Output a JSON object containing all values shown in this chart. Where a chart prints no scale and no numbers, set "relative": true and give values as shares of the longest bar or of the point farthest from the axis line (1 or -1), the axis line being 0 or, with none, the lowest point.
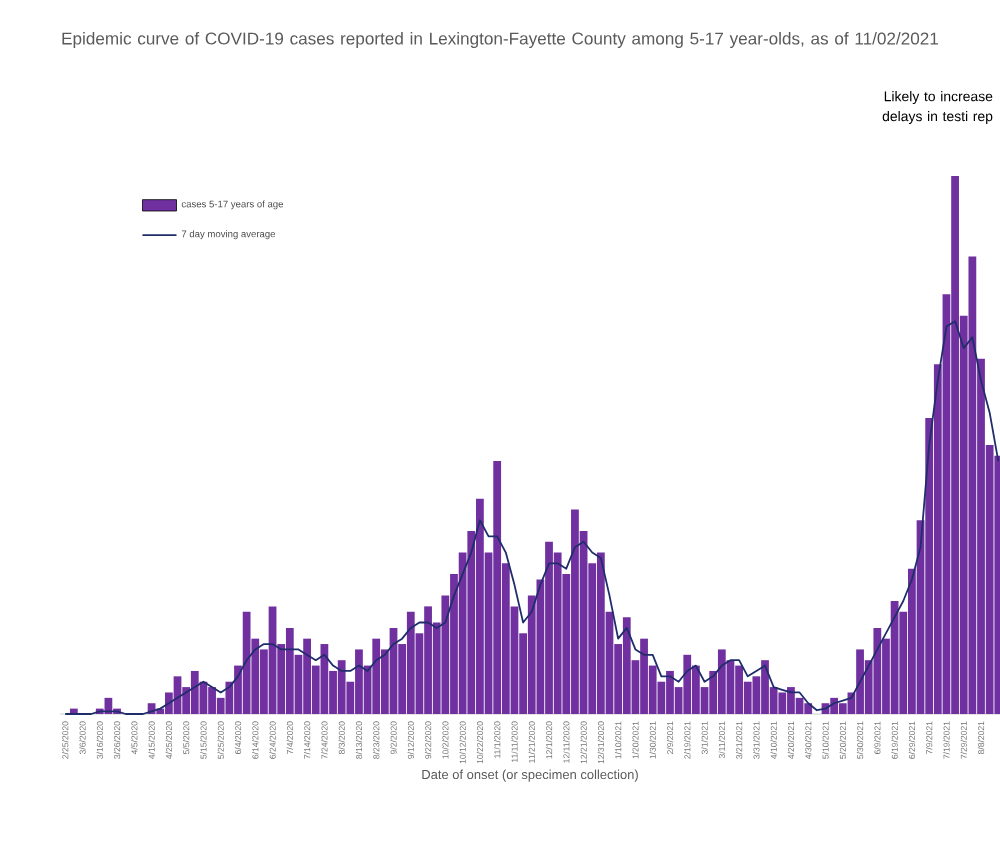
{
  "chart_data": {
    "type": "bar",
    "title": "Epidemic curve of COVID-19 cases reported in Lexington-Fayette County among 5-17 year-olds, as of 11/02/2021",
    "xlabel": "Date of onset (or specimen collection)",
    "annotations": [
      "Likely to increase delays in testi rep"
    ],
    "relative": true,
    "legend": "top left",
    "tick_labels": "x",
    "xlim": [
      "2020-02-22",
      "2021-08-19"
    ],
    "xticks": [
      {
        "value": "2020-02-25",
        "label": "2/25/2020"
      },
      {
        "value": "2020-03-06",
        "label": "3/6/2020"
      },
      {
        "value": "2020-03-16",
        "label": "3/16/2020"
      },
      {
        "value": "2020-03-26",
        "label": "3/26/2020"
      },
      {
        "value": "2020-04-05",
        "label": "4/5/2020"
      },
      {
        "value": "2020-04-15",
        "label": "4/15/2020"
      },
      {
        "value": "2020-04-25",
        "label": "4/25/2020"
      },
      {
        "value": "2020-05-05",
        "label": "5/5/2020"
      },
      {
        "value": "2020-05-15",
        "label": "5/15/2020"
      },
      {
        "value": "2020-05-25",
        "label": "5/25/2020"
      },
      {
        "value": "2020-06-04",
        "label": "6/4/2020"
      },
      {
        "value": "2020-06-14",
        "label": "6/14/2020"
      },
      {
        "value": "2020-06-24",
        "label": "6/24/2020"
      },
      {
        "value": "2020-07-04",
        "label": "7/4/2020"
      },
      {
        "value": "2020-07-14",
        "label": "7/14/2020"
      },
      {
        "value": "2020-07-24",
        "label": "7/24/2020"
      },
      {
        "value": "2020-08-03",
        "label": "8/3/2020"
      },
      {
        "value": "2020-08-13",
        "label": "8/13/2020"
      },
      {
        "value": "2020-08-23",
        "label": "8/23/2020"
      },
      {
        "value": "2020-09-02",
        "label": "9/2/2020"
      },
      {
        "value": "2020-09-12",
        "label": "9/12/2020"
      },
      {
        "value": "2020-09-22",
        "label": "9/22/2020"
      },
      {
        "value": "2020-10-02",
        "label": "10/2/2020"
      },
      {
        "value": "2020-10-12",
        "label": "10/12/2020"
      },
      {
        "value": "2020-10-22",
        "label": "10/22/2020"
      },
      {
        "value": "2020-11-01",
        "label": "11/1/2020"
      },
      {
        "value": "2020-11-11",
        "label": "11/11/2020"
      },
      {
        "value": "2020-11-21",
        "label": "11/21/2020"
      },
      {
        "value": "2020-12-01",
        "label": "12/1/2020"
      },
      {
        "value": "2020-12-11",
        "label": "12/11/2020"
      },
      {
        "value": "2020-12-21",
        "label": "12/21/2020"
      },
      {
        "value": "2020-12-31",
        "label": "12/31/2020"
      },
      {
        "value": "2021-01-10",
        "label": "1/10/2021"
      },
      {
        "value": "2021-01-20",
        "label": "1/20/2021"
      },
      {
        "value": "2021-01-30",
        "label": "1/30/2021"
      },
      {
        "value": "2021-02-09",
        "label": "2/9/2021"
      },
      {
        "value": "2021-02-19",
        "label": "2/19/2021"
      },
      {
        "value": "2021-03-01",
        "label": "3/1/2021"
      },
      {
        "value": "2021-03-11",
        "label": "3/11/2021"
      },
      {
        "value": "2021-03-21",
        "label": "3/21/2021"
      },
      {
        "value": "2021-03-31",
        "label": "3/31/2021"
      },
      {
        "value": "2021-04-10",
        "label": "4/10/2021"
      },
      {
        "value": "2021-04-20",
        "label": "4/20/2021"
      },
      {
        "value": "2021-04-30",
        "label": "4/30/2021"
      },
      {
        "value": "2021-05-10",
        "label": "5/10/2021"
      },
      {
        "value": "2021-05-20",
        "label": "5/20/2021"
      },
      {
        "value": "2021-05-30",
        "label": "5/30/2021"
      },
      {
        "value": "2021-06-09",
        "label": "6/9/2021"
      },
      {
        "value": "2021-06-19",
        "label": "6/19/2021"
      },
      {
        "value": "2021-06-29",
        "label": "6/29/2021"
      },
      {
        "value": "2021-07-09",
        "label": "7/9/2021"
      },
      {
        "value": "2021-07-19",
        "label": "7/19/2021"
      },
      {
        "value": "2021-07-29",
        "label": "7/29/2021"
      },
      {
        "value": "2021-08-08",
        "label": "8/8/2021"
      }
    ],
    "x": [
      "2020-02-25",
      "2020-03-01",
      "2020-03-06",
      "2020-03-11",
      "2020-03-16",
      "2020-03-21",
      "2020-03-26",
      "2020-03-31",
      "2020-04-05",
      "2020-04-10",
      "2020-04-15",
      "2020-04-20",
      "2020-04-25",
      "2020-04-30",
      "2020-05-05",
      "2020-05-10",
      "2020-05-15",
      "2020-05-20",
      "2020-05-25",
      "2020-05-30",
      "2020-06-04",
      "2020-06-09",
      "2020-06-14",
      "2020-06-19",
      "2020-06-24",
      "2020-06-29",
      "2020-07-04",
      "2020-07-09",
      "2020-07-14",
      "2020-07-19",
      "2020-07-24",
      "2020-07-29",
      "2020-08-03",
      "2020-08-08",
      "2020-08-13",
      "2020-08-18",
      "2020-08-23",
      "2020-08-28",
      "2020-09-02",
      "2020-09-07",
      "2020-09-12",
      "2020-09-17",
      "2020-09-22",
      "2020-09-27",
      "2020-10-02",
      "2020-10-07",
      "2020-10-12",
      "2020-10-17",
      "2020-10-22",
      "2020-10-27",
      "2020-11-01",
      "2020-11-06",
      "2020-11-11",
      "2020-11-16",
      "2020-11-21",
      "2020-11-26",
      "2020-12-01",
      "2020-12-06",
      "2020-12-11",
      "2020-12-16",
      "2020-12-21",
      "2020-12-26",
      "2020-12-31",
      "2021-01-05",
      "2021-01-10",
      "2021-01-15",
      "2021-01-20",
      "2021-01-25",
      "2021-01-30",
      "2021-02-04",
      "2021-02-09",
      "2021-02-14",
      "2021-02-19",
      "2021-02-24",
      "2021-03-01",
      "2021-03-06",
      "2021-03-11",
      "2021-03-16",
      "2021-03-21",
      "2021-03-26",
      "2021-03-31",
      "2021-04-05",
      "2021-04-10",
      "2021-04-15",
      "2021-04-20",
      "2021-04-25",
      "2021-04-30",
      "2021-05-05",
      "2021-05-10",
      "2021-05-15",
      "2021-05-20",
      "2021-05-25",
      "2021-05-30",
      "2021-06-04",
      "2021-06-09",
      "2021-06-14",
      "2021-06-19",
      "2021-06-24",
      "2021-06-29",
      "2021-07-04",
      "2021-07-09",
      "2021-07-14",
      "2021-07-19",
      "2021-07-24",
      "2021-07-29",
      "2021-08-03",
      "2021-08-08",
      "2021-08-13",
      "2021-08-18"
    ],
    "series": [
      {
        "name": "cases 5-17 years of age",
        "color": "#7030a0",
        "values": [
          0,
          0.01,
          0,
          0,
          0.01,
          0.03,
          0.01,
          0,
          0,
          0,
          0.02,
          0.01,
          0.04,
          0.07,
          0.05,
          0.08,
          0.06,
          0.05,
          0.03,
          0.06,
          0.09,
          0.19,
          0.14,
          0.12,
          0.2,
          0.13,
          0.16,
          0.11,
          0.14,
          0.09,
          0.13,
          0.08,
          0.1,
          0.06,
          0.12,
          0.09,
          0.14,
          0.12,
          0.16,
          0.13,
          0.19,
          0.15,
          0.2,
          0.17,
          0.22,
          0.26,
          0.3,
          0.34,
          0.4,
          0.3,
          0.47,
          0.28,
          0.2,
          0.15,
          0.22,
          0.25,
          0.32,
          0.3,
          0.26,
          0.38,
          0.34,
          0.28,
          0.3,
          0.19,
          0.13,
          0.18,
          0.1,
          0.14,
          0.09,
          0.06,
          0.08,
          0.05,
          0.11,
          0.09,
          0.05,
          0.08,
          0.12,
          0.1,
          0.09,
          0.06,
          0.07,
          0.1,
          0.05,
          0.04,
          0.05,
          0.03,
          0.02,
          0,
          0.02,
          0.03,
          0.02,
          0.04,
          0.12,
          0.1,
          0.16,
          0.14,
          0.21,
          0.19,
          0.27,
          0.36,
          0.55,
          0.65,
          0.78,
          1,
          0.74,
          0.85,
          0.66,
          0.5,
          0.48
        ]
      },
      {
        "name": "7 day moving average",
        "type": "line",
        "color": "#1f2d6b",
        "values": [
          0,
          0,
          0,
          0,
          0.005,
          0.005,
          0.005,
          0,
          0,
          0,
          0.005,
          0.01,
          0.02,
          0.03,
          0.04,
          0.05,
          0.06,
          0.05,
          0.04,
          0.05,
          0.07,
          0.1,
          0.12,
          0.13,
          0.13,
          0.12,
          0.12,
          0.12,
          0.11,
          0.1,
          0.11,
          0.09,
          0.08,
          0.08,
          0.09,
          0.08,
          0.1,
          0.11,
          0.13,
          0.14,
          0.16,
          0.17,
          0.17,
          0.16,
          0.17,
          0.22,
          0.26,
          0.3,
          0.36,
          0.33,
          0.33,
          0.3,
          0.24,
          0.17,
          0.19,
          0.24,
          0.28,
          0.28,
          0.27,
          0.31,
          0.32,
          0.3,
          0.29,
          0.22,
          0.14,
          0.16,
          0.12,
          0.11,
          0.11,
          0.07,
          0.07,
          0.06,
          0.08,
          0.09,
          0.06,
          0.07,
          0.09,
          0.1,
          0.1,
          0.07,
          0.08,
          0.09,
          0.05,
          0.045,
          0.04,
          0.04,
          0.02,
          0.007,
          0.01,
          0.02,
          0.025,
          0.03,
          0.06,
          0.09,
          0.12,
          0.15,
          0.18,
          0.21,
          0.25,
          0.31,
          0.5,
          0.62,
          0.72,
          0.73,
          0.68,
          0.7,
          0.62,
          0.56,
          0.47
        ]
      }
    ]
  }
}
